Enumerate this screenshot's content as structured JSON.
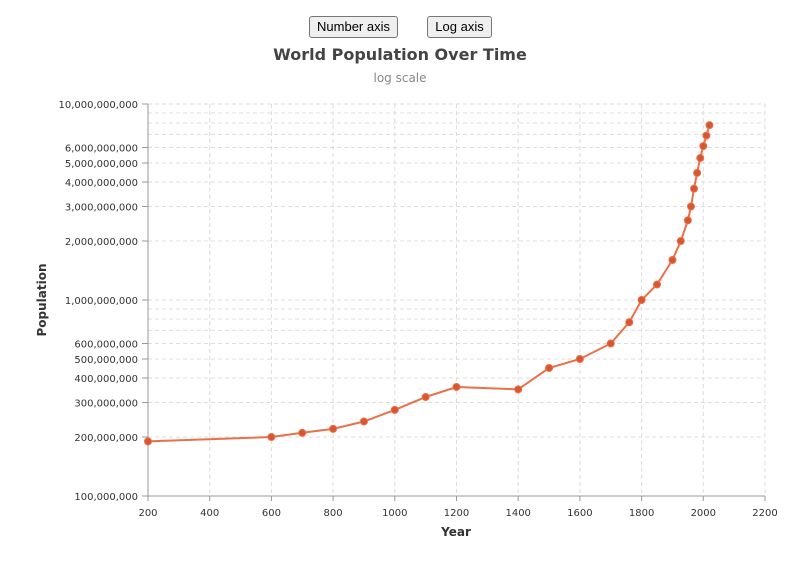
{
  "toolbar": {
    "number_axis_label": "Number axis",
    "log_axis_label": "Log axis"
  },
  "colors": {
    "series": "#e8704a",
    "point_fill": "#d9562e"
  },
  "chart_data": {
    "type": "line",
    "title": "World Population Over Time",
    "subtitle": "log scale",
    "xlabel": "Year",
    "ylabel": "Population",
    "xlim": [
      200,
      2200
    ],
    "ylim": [
      100000000,
      10000000000
    ],
    "y_scale": "log",
    "grid": true,
    "x_ticks": [
      200,
      400,
      600,
      800,
      1000,
      1200,
      1400,
      1600,
      1800,
      2000,
      2200
    ],
    "y_ticks": [
      100000000,
      200000000,
      300000000,
      400000000,
      500000000,
      600000000,
      1000000000,
      2000000000,
      3000000000,
      4000000000,
      5000000000,
      6000000000,
      10000000000
    ],
    "y_tick_labels": [
      "100,000,000",
      "200,000,000",
      "300,000,000",
      "400,000,000",
      "500,000,000",
      "600,000,000",
      "1,000,000,000",
      "2,000,000,000",
      "3,000,000,000",
      "4,000,000,000",
      "5,000,000,000",
      "6,000,000,000",
      "10,000,000,000"
    ],
    "y_minor_grid": [
      700000000,
      800000000,
      900000000,
      7000000000,
      8000000000,
      9000000000
    ],
    "series": [
      {
        "x": [
          200,
          600,
          700,
          800,
          900,
          1000,
          1100,
          1200,
          1400,
          1500,
          1600,
          1700,
          1760,
          1800,
          1850,
          1900,
          1927,
          1950,
          1960,
          1970,
          1980,
          1990,
          2000,
          2010,
          2020
        ],
        "y": [
          190000000,
          200000000,
          210000000,
          220000000,
          240000000,
          275000000,
          320000000,
          360000000,
          350000000,
          450000000,
          500000000,
          600000000,
          770000000,
          1000000000,
          1200000000,
          1600000000,
          2000000000,
          2550000000,
          3000000000,
          3700000000,
          4450000000,
          5300000000,
          6100000000,
          6900000000,
          7800000000
        ]
      }
    ]
  }
}
